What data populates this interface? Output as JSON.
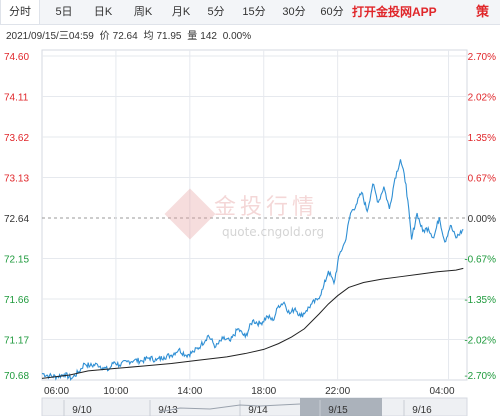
{
  "toolbar": {
    "tabs": [
      {
        "label": "分时",
        "active": true
      },
      {
        "label": "5日",
        "active": false
      },
      {
        "label": "日K",
        "active": false
      },
      {
        "label": "周K",
        "active": false
      },
      {
        "label": "月K",
        "active": false
      },
      {
        "label": "5分",
        "active": false
      },
      {
        "label": "15分",
        "active": false
      },
      {
        "label": "30分",
        "active": false
      },
      {
        "label": "60分",
        "active": false
      }
    ],
    "promo": "打开金投网APP",
    "promo_cut": "策"
  },
  "quote": {
    "datetime": "2021/09/15/三04:59",
    "price_label": "价",
    "price": "72.64",
    "avg_label": "均",
    "avg": "71.95",
    "volume_label": "量",
    "volume": "142",
    "change": "0.00%"
  },
  "watermark": {
    "brand": "金投行情",
    "url": "quote.cngold.org"
  },
  "colors": {
    "price_line": "#2f8fd4",
    "avg_line": "#222222",
    "up": "#e0262a",
    "down": "#1e9a3c",
    "neutral": "#333333",
    "ref_line": "#999999"
  },
  "chart_data": {
    "type": "line",
    "title": "",
    "xlabel": "",
    "ylabel": "",
    "ylim": [
      70.68,
      74.6
    ],
    "reference_price": 72.64,
    "y_ticks": [
      "74.60",
      "74.11",
      "73.62",
      "73.13",
      "72.64",
      "72.15",
      "71.66",
      "71.17",
      "70.68"
    ],
    "right_ticks": [
      "2.70%",
      "2.02%",
      "1.35%",
      "0.67%",
      "0.00%",
      "-0.67%",
      "-1.35%",
      "-2.02%",
      "-2.70%"
    ],
    "x_ticks": [
      "06:00",
      "10:00",
      "14:00",
      "18:00",
      "22:00",
      "04:00"
    ],
    "x_tick_hours": [
      0,
      4,
      8,
      12,
      16,
      22
    ],
    "x_range_hours": [
      0,
      23
    ],
    "grid": true,
    "series": [
      {
        "hours": [
          0,
          0.4,
          0.8,
          1.2,
          1.6,
          2.0,
          2.3,
          2.6,
          3.0,
          3.3,
          3.6,
          3.9,
          4.2,
          4.6,
          5.0,
          5.4,
          5.8,
          6.2,
          6.6,
          7.0,
          7.4,
          7.8,
          8.2,
          8.6,
          9.0,
          9.4,
          9.8,
          10.2,
          10.6,
          11.0,
          11.4,
          11.8,
          12.2,
          12.5,
          12.8,
          13.1,
          13.4,
          13.7,
          14.0,
          14.3,
          14.6,
          14.9,
          15.2,
          15.5,
          15.8,
          16.1,
          16.4,
          16.7,
          17.0,
          17.3,
          17.6,
          17.9,
          18.2,
          18.5,
          18.8,
          19.1,
          19.4,
          19.7,
          20.0,
          20.3,
          20.6,
          20.9,
          21.2,
          21.5,
          21.8,
          22.1,
          22.4,
          22.8
        ],
        "values": [
          70.76,
          70.73,
          70.72,
          70.75,
          70.7,
          70.78,
          70.88,
          70.85,
          70.87,
          70.83,
          70.8,
          70.9,
          70.86,
          70.9,
          70.92,
          70.91,
          70.95,
          70.92,
          70.96,
          70.98,
          71.05,
          70.98,
          71.02,
          71.1,
          71.22,
          71.08,
          71.18,
          71.15,
          71.3,
          71.2,
          71.4,
          71.36,
          71.45,
          71.4,
          71.58,
          71.62,
          71.48,
          71.55,
          71.45,
          71.52,
          71.6,
          71.65,
          71.78,
          72.0,
          71.85,
          72.2,
          72.35,
          72.7,
          72.8,
          72.95,
          72.72,
          73.05,
          72.83,
          73.02,
          72.75,
          73.12,
          73.35,
          73.05,
          72.38,
          72.7,
          72.48,
          72.52,
          72.4,
          72.65,
          72.35,
          72.55,
          72.4,
          72.5
        ],
        "fine": [
          72.62,
          72.7,
          72.63,
          72.72,
          72.65,
          72.6,
          72.74,
          72.68,
          72.62,
          72.69,
          72.64,
          72.58,
          72.66,
          72.71,
          72.63
        ]
      },
      {
        "hours": [
          0,
          1.5,
          2.5,
          4.0,
          5.5,
          7.0,
          8.5,
          10.0,
          11.0,
          12.0,
          12.8,
          13.5,
          14.2,
          15.0,
          15.5,
          16.0,
          16.6,
          17.4,
          18.4,
          19.4,
          20.4,
          21.4,
          22.4,
          22.8
        ],
        "values": [
          70.7,
          70.74,
          70.79,
          70.82,
          70.85,
          70.88,
          70.92,
          70.96,
          71.0,
          71.05,
          71.12,
          71.2,
          71.3,
          71.48,
          71.6,
          71.7,
          71.8,
          71.86,
          71.9,
          71.93,
          71.96,
          71.99,
          72.01,
          72.03
        ]
      }
    ]
  },
  "navigator": {
    "labels": [
      "9/10",
      "9/13",
      "9/14",
      "9/15",
      "9/16"
    ],
    "selected": "9/15"
  }
}
